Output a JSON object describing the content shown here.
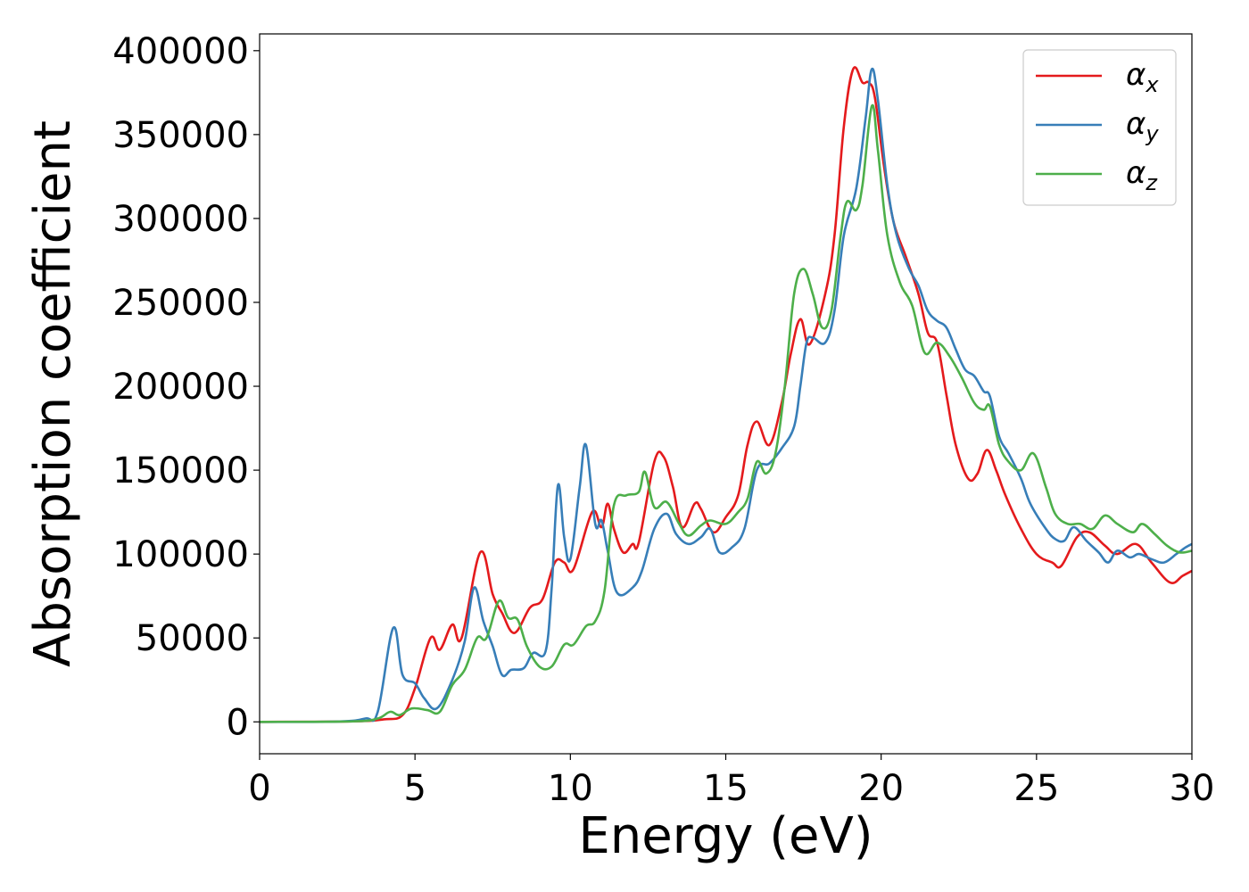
{
  "chart_data": {
    "type": "line",
    "title": "",
    "xlabel": "Energy (eV)",
    "ylabel": "Absorption coefficient",
    "xlim": [
      0,
      30
    ],
    "ylim": [
      -19000,
      410000
    ],
    "xticks": [
      0,
      5,
      10,
      15,
      20,
      25,
      30
    ],
    "xtick_labels": [
      "0",
      "5",
      "10",
      "15",
      "20",
      "25",
      "30"
    ],
    "yticks": [
      0,
      50000,
      100000,
      150000,
      200000,
      250000,
      300000,
      350000,
      400000
    ],
    "ytick_labels": [
      "0",
      "50000",
      "100000",
      "150000",
      "200000",
      "250000",
      "300000",
      "350000",
      "400000"
    ],
    "grid": false,
    "legend_position": "top-right",
    "series": [
      {
        "name": "α_x",
        "label_main": "α",
        "label_sub": "x",
        "color": "#e41a1c",
        "points": [
          [
            0,
            0
          ],
          [
            3,
            300
          ],
          [
            4,
            1500
          ],
          [
            4.6,
            4000
          ],
          [
            5,
            20000
          ],
          [
            5.5,
            50000
          ],
          [
            5.8,
            43000
          ],
          [
            6.2,
            58000
          ],
          [
            6.5,
            50000
          ],
          [
            7.1,
            101000
          ],
          [
            7.5,
            76000
          ],
          [
            7.8,
            65000
          ],
          [
            8.2,
            53000
          ],
          [
            8.7,
            68000
          ],
          [
            9.1,
            73000
          ],
          [
            9.5,
            95000
          ],
          [
            9.8,
            95000
          ],
          [
            10.1,
            91000
          ],
          [
            10.7,
            125000
          ],
          [
            11.0,
            116000
          ],
          [
            11.2,
            130000
          ],
          [
            11.4,
            115000
          ],
          [
            11.7,
            101000
          ],
          [
            12.0,
            106000
          ],
          [
            12.2,
            107000
          ],
          [
            12.7,
            155000
          ],
          [
            13.0,
            158000
          ],
          [
            13.3,
            140000
          ],
          [
            13.6,
            116000
          ],
          [
            14.0,
            130000
          ],
          [
            14.2,
            127000
          ],
          [
            14.6,
            113000
          ],
          [
            15.0,
            122000
          ],
          [
            15.4,
            135000
          ],
          [
            15.7,
            165000
          ],
          [
            16.0,
            179000
          ],
          [
            16.4,
            165000
          ],
          [
            16.8,
            190000
          ],
          [
            17.1,
            220000
          ],
          [
            17.4,
            240000
          ],
          [
            17.7,
            225000
          ],
          [
            18.2,
            255000
          ],
          [
            18.5,
            290000
          ],
          [
            18.8,
            355000
          ],
          [
            19.1,
            389000
          ],
          [
            19.4,
            381000
          ],
          [
            19.6,
            381000
          ],
          [
            19.8,
            372000
          ],
          [
            20.1,
            330000
          ],
          [
            20.4,
            298000
          ],
          [
            20.8,
            277000
          ],
          [
            21.2,
            255000
          ],
          [
            21.5,
            232000
          ],
          [
            21.8,
            226000
          ],
          [
            22.1,
            195000
          ],
          [
            22.4,
            165000
          ],
          [
            22.8,
            145000
          ],
          [
            23.1,
            148000
          ],
          [
            23.4,
            162000
          ],
          [
            23.7,
            150000
          ],
          [
            24.0,
            135000
          ],
          [
            24.5,
            115000
          ],
          [
            25.0,
            100000
          ],
          [
            25.5,
            95000
          ],
          [
            25.8,
            93000
          ],
          [
            26.3,
            110000
          ],
          [
            26.7,
            113000
          ],
          [
            27.2,
            105000
          ],
          [
            27.6,
            100000
          ],
          [
            28.2,
            106000
          ],
          [
            28.7,
            95000
          ],
          [
            29.3,
            83000
          ],
          [
            29.7,
            87000
          ],
          [
            30,
            90000
          ]
        ]
      },
      {
        "name": "α_y",
        "label_main": "α",
        "label_sub": "y",
        "color": "#377eb8",
        "points": [
          [
            0,
            0
          ],
          [
            2.5,
            200
          ],
          [
            3.4,
            2000
          ],
          [
            3.8,
            6000
          ],
          [
            4.3,
            56000
          ],
          [
            4.6,
            28000
          ],
          [
            5.0,
            23000
          ],
          [
            5.3,
            14000
          ],
          [
            5.7,
            8000
          ],
          [
            6.2,
            25000
          ],
          [
            6.6,
            48000
          ],
          [
            6.9,
            80000
          ],
          [
            7.2,
            60000
          ],
          [
            7.5,
            45000
          ],
          [
            7.8,
            28000
          ],
          [
            8.1,
            31000
          ],
          [
            8.5,
            32000
          ],
          [
            8.8,
            41000
          ],
          [
            9.2,
            42000
          ],
          [
            9.4,
            80000
          ],
          [
            9.6,
            141000
          ],
          [
            9.8,
            110000
          ],
          [
            10.0,
            97000
          ],
          [
            10.3,
            140000
          ],
          [
            10.5,
            165000
          ],
          [
            10.8,
            118000
          ],
          [
            11.0,
            120000
          ],
          [
            11.2,
            102000
          ],
          [
            11.5,
            77000
          ],
          [
            12.0,
            80000
          ],
          [
            12.3,
            90000
          ],
          [
            12.7,
            115000
          ],
          [
            13.1,
            124000
          ],
          [
            13.4,
            112000
          ],
          [
            13.8,
            106000
          ],
          [
            14.2,
            110000
          ],
          [
            14.5,
            115000
          ],
          [
            14.8,
            101000
          ],
          [
            15.2,
            104000
          ],
          [
            15.6,
            115000
          ],
          [
            16.0,
            150000
          ],
          [
            16.4,
            154000
          ],
          [
            16.8,
            163000
          ],
          [
            17.2,
            176000
          ],
          [
            17.4,
            200000
          ],
          [
            17.6,
            226000
          ],
          [
            17.8,
            229000
          ],
          [
            18.2,
            226000
          ],
          [
            18.5,
            245000
          ],
          [
            18.8,
            290000
          ],
          [
            19.2,
            318000
          ],
          [
            19.5,
            360000
          ],
          [
            19.7,
            389000
          ],
          [
            19.9,
            370000
          ],
          [
            20.2,
            320000
          ],
          [
            20.5,
            290000
          ],
          [
            20.9,
            270000
          ],
          [
            21.2,
            260000
          ],
          [
            21.5,
            245000
          ],
          [
            21.8,
            239000
          ],
          [
            22.1,
            235000
          ],
          [
            22.4,
            222000
          ],
          [
            22.7,
            210000
          ],
          [
            23.0,
            206000
          ],
          [
            23.3,
            197000
          ],
          [
            23.5,
            194000
          ],
          [
            23.8,
            170000
          ],
          [
            24.1,
            160000
          ],
          [
            24.5,
            145000
          ],
          [
            24.8,
            130000
          ],
          [
            25.3,
            115000
          ],
          [
            25.6,
            109000
          ],
          [
            25.9,
            108000
          ],
          [
            26.2,
            116000
          ],
          [
            26.6,
            108000
          ],
          [
            27.0,
            101000
          ],
          [
            27.3,
            95000
          ],
          [
            27.6,
            102000
          ],
          [
            28.0,
            98000
          ],
          [
            28.3,
            100000
          ],
          [
            28.7,
            97000
          ],
          [
            29.1,
            95000
          ],
          [
            29.5,
            100000
          ],
          [
            29.8,
            104000
          ],
          [
            30,
            106000
          ]
        ]
      },
      {
        "name": "α_z",
        "label_main": "α",
        "label_sub": "z",
        "color": "#4daf4a",
        "points": [
          [
            0,
            0
          ],
          [
            3,
            300
          ],
          [
            3.8,
            2000
          ],
          [
            4.2,
            6000
          ],
          [
            4.5,
            4000
          ],
          [
            4.9,
            8000
          ],
          [
            5.4,
            7000
          ],
          [
            5.8,
            6000
          ],
          [
            6.2,
            22000
          ],
          [
            6.6,
            31000
          ],
          [
            7.0,
            50000
          ],
          [
            7.3,
            50000
          ],
          [
            7.7,
            72000
          ],
          [
            8.0,
            62000
          ],
          [
            8.3,
            61000
          ],
          [
            8.6,
            45000
          ],
          [
            9.0,
            33000
          ],
          [
            9.4,
            33000
          ],
          [
            9.8,
            46000
          ],
          [
            10.1,
            46000
          ],
          [
            10.5,
            57000
          ],
          [
            10.8,
            60000
          ],
          [
            11.1,
            78000
          ],
          [
            11.4,
            129000
          ],
          [
            11.8,
            135000
          ],
          [
            12.2,
            137000
          ],
          [
            12.4,
            149000
          ],
          [
            12.7,
            128000
          ],
          [
            13.1,
            131000
          ],
          [
            13.5,
            118000
          ],
          [
            13.8,
            111000
          ],
          [
            14.2,
            117000
          ],
          [
            14.5,
            120000
          ],
          [
            15.0,
            118000
          ],
          [
            15.4,
            125000
          ],
          [
            15.7,
            133000
          ],
          [
            16.0,
            155000
          ],
          [
            16.3,
            148000
          ],
          [
            16.6,
            160000
          ],
          [
            16.9,
            200000
          ],
          [
            17.2,
            255000
          ],
          [
            17.5,
            270000
          ],
          [
            17.8,
            255000
          ],
          [
            18.1,
            235000
          ],
          [
            18.4,
            245000
          ],
          [
            18.7,
            290000
          ],
          [
            18.9,
            310000
          ],
          [
            19.2,
            305000
          ],
          [
            19.4,
            320000
          ],
          [
            19.7,
            367000
          ],
          [
            19.9,
            340000
          ],
          [
            20.2,
            290000
          ],
          [
            20.6,
            262000
          ],
          [
            21.0,
            248000
          ],
          [
            21.4,
            220000
          ],
          [
            21.8,
            226000
          ],
          [
            22.2,
            218000
          ],
          [
            22.6,
            205000
          ],
          [
            23.0,
            190000
          ],
          [
            23.3,
            186000
          ],
          [
            23.5,
            188000
          ],
          [
            23.8,
            165000
          ],
          [
            24.1,
            155000
          ],
          [
            24.5,
            150000
          ],
          [
            24.9,
            160000
          ],
          [
            25.3,
            140000
          ],
          [
            25.6,
            124000
          ],
          [
            26.0,
            118000
          ],
          [
            26.4,
            118000
          ],
          [
            26.8,
            115000
          ],
          [
            27.2,
            123000
          ],
          [
            27.6,
            118000
          ],
          [
            28.1,
            113000
          ],
          [
            28.4,
            118000
          ],
          [
            28.8,
            112000
          ],
          [
            29.2,
            105000
          ],
          [
            29.6,
            101000
          ],
          [
            30,
            102000
          ]
        ]
      }
    ]
  }
}
